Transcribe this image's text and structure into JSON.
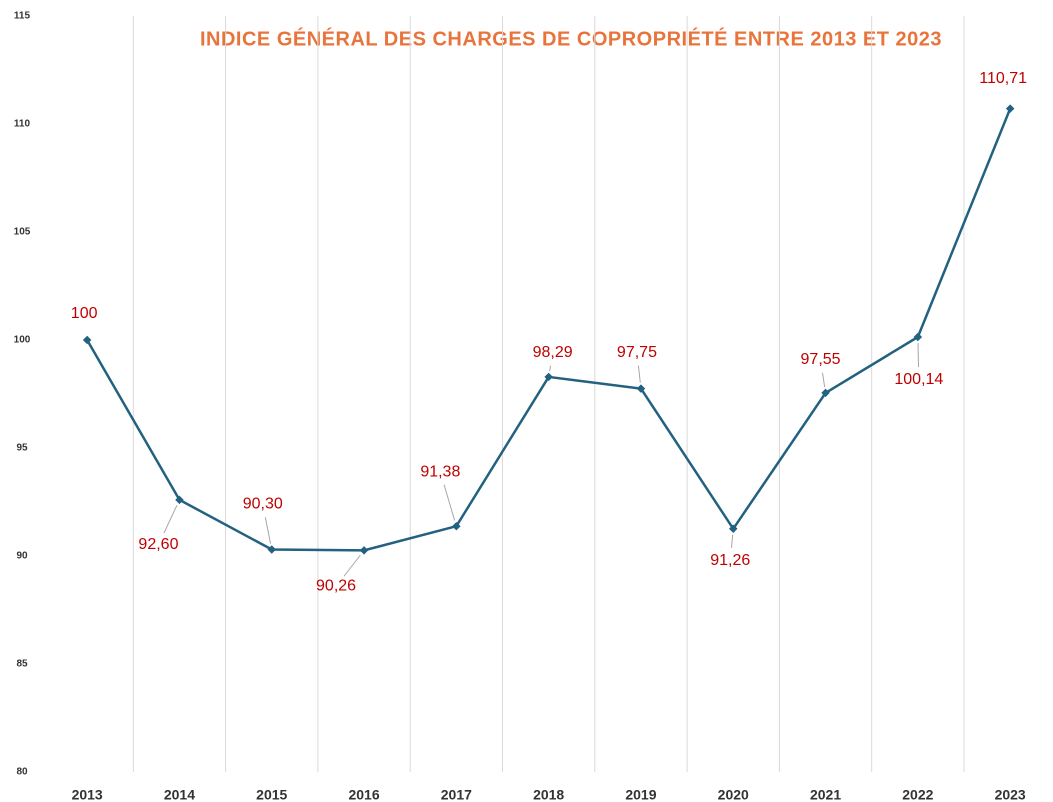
{
  "chart_data": {
    "type": "line",
    "title": "INDICE GÉNÉRAL DES CHARGES DE COPROPRIÉTÉ ENTRE 2013 ET 2023",
    "categories": [
      "2013",
      "2014",
      "2015",
      "2016",
      "2017",
      "2018",
      "2019",
      "2020",
      "2021",
      "2022",
      "2023"
    ],
    "series": [
      {
        "name": "Indice",
        "color": "#22617f",
        "values": [
          100,
          92.6,
          90.3,
          90.26,
          91.38,
          98.29,
          97.75,
          91.26,
          97.55,
          100.14,
          110.71
        ],
        "value_labels": [
          "100",
          "92,60",
          "90,30",
          "90,26",
          "91,38",
          "98,29",
          "97,75",
          "91,26",
          "97,55",
          "100,14",
          "110,71"
        ]
      }
    ],
    "label_color": "#c00000",
    "title_color": "#e8743b",
    "ylim": [
      80,
      115
    ],
    "yticks": [
      80,
      85,
      90,
      95,
      100,
      105,
      110,
      115
    ],
    "grid": "x"
  }
}
